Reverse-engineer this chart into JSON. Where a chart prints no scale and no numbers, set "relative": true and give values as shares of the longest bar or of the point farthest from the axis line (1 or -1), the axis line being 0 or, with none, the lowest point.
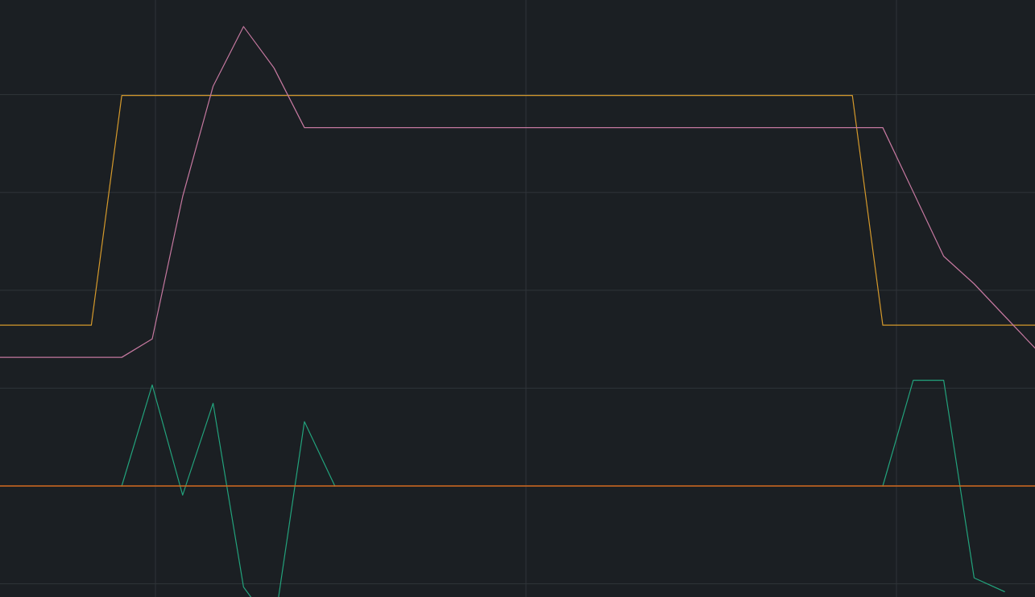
{
  "chart_data": {
    "type": "line",
    "relative": true,
    "grid": true,
    "categories": [
      null,
      null,
      null,
      null,
      null,
      null,
      null,
      null,
      null,
      null,
      null,
      null,
      null,
      null,
      null,
      null,
      null,
      null,
      null,
      null,
      null,
      null,
      null,
      null,
      null,
      null,
      null,
      null,
      null,
      null,
      null,
      null,
      null,
      null,
      null
    ],
    "series": [
      {
        "color": "#d4992c",
        "values": [
          0.35,
          0.35,
          0.35,
          0.35,
          0.85,
          0.85,
          0.85,
          0.85,
          0.85,
          0.85,
          0.85,
          0.85,
          0.85,
          0.85,
          0.85,
          0.85,
          0.85,
          0.85,
          0.85,
          0.85,
          0.85,
          0.85,
          0.85,
          0.85,
          0.85,
          0.85,
          0.85,
          0.85,
          0.85,
          0.35,
          0.35,
          0.35,
          0.35,
          0.35,
          0.35
        ]
      },
      {
        "color": "#c4789f",
        "values": [
          0.28,
          0.28,
          0.28,
          0.28,
          0.28,
          0.32,
          0.63,
          0.87,
          1,
          0.91,
          0.78,
          0.78,
          0.78,
          0.78,
          0.78,
          0.78,
          0.78,
          0.78,
          0.78,
          0.78,
          0.78,
          0.78,
          0.78,
          0.78,
          0.78,
          0.78,
          0.78,
          0.78,
          0.78,
          0.78,
          0.64,
          0.5,
          0.44,
          0.37,
          0.3
        ]
      },
      {
        "color": "#23a27c",
        "values": [
          null,
          null,
          null,
          null,
          0,
          0.22,
          -0.02,
          0.18,
          -0.22,
          -0.31,
          0.14,
          0,
          null,
          null,
          null,
          null,
          null,
          null,
          null,
          null,
          null,
          null,
          null,
          null,
          null,
          null,
          null,
          null,
          null,
          0,
          0.23,
          0.23,
          -0.2,
          -0.23,
          null
        ]
      }
    ],
    "ref_lines": [
      {
        "axis": "y",
        "value": 0,
        "color": "#d2691e"
      }
    ]
  }
}
